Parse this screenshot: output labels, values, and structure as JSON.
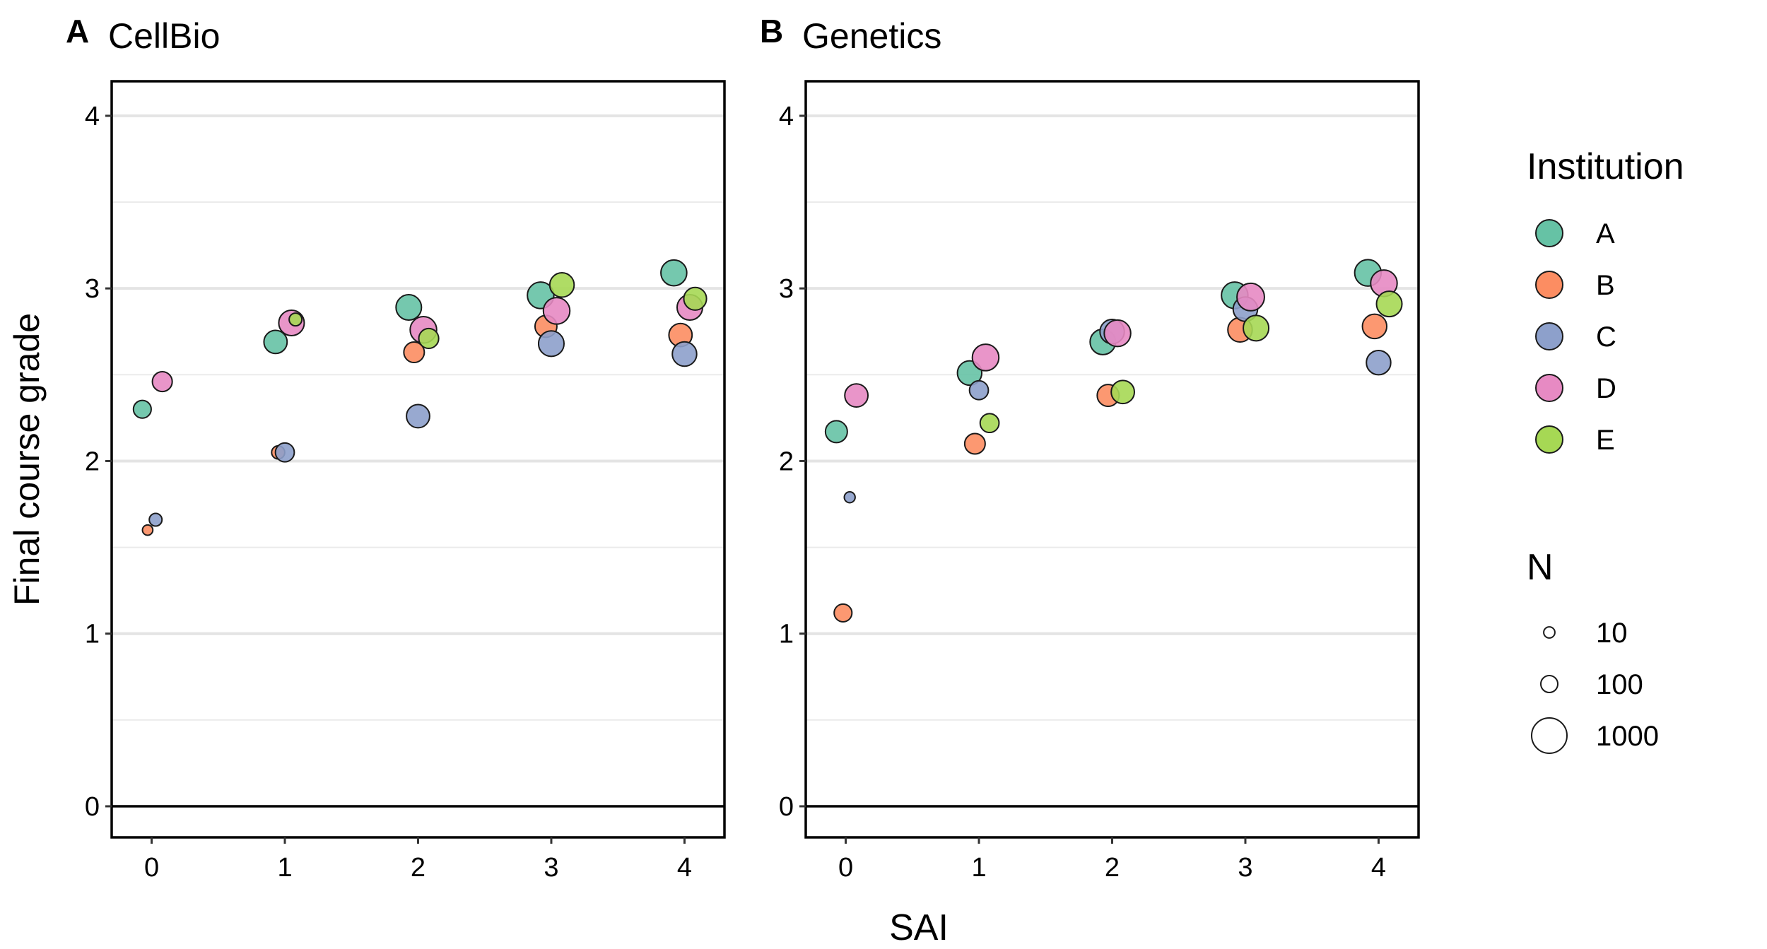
{
  "colors": {
    "A": "#66C2A5",
    "B": "#FC8D62",
    "C": "#8DA0CB",
    "D": "#E78AC3",
    "E": "#A6D854"
  },
  "legend": {
    "institution_title": "Institution",
    "institutions": [
      "A",
      "B",
      "C",
      "D",
      "E"
    ],
    "size_title": "N",
    "sizes": [
      {
        "label": "10",
        "n": 10
      },
      {
        "label": "100",
        "n": 100
      },
      {
        "label": "1000",
        "n": 1000
      }
    ]
  },
  "x_label": "SAI",
  "y_label": "Final course grade",
  "chart_data": [
    {
      "type": "scatter",
      "panel_letter": "A",
      "title": "CellBio",
      "x_ticks": [
        "0",
        "1",
        "2",
        "3",
        "4"
      ],
      "y_ticks": [
        "0",
        "1",
        "2",
        "3",
        "4"
      ],
      "xlim": [
        -0.3,
        4.3
      ],
      "ylim": [
        -0.18,
        4.2
      ],
      "points": [
        {
          "institution": "A",
          "x": -0.07,
          "y": 2.3,
          "n": 120
        },
        {
          "institution": "B",
          "x": -0.03,
          "y": 1.6,
          "n": 5
        },
        {
          "institution": "C",
          "x": 0.03,
          "y": 1.66,
          "n": 25
        },
        {
          "institution": "D",
          "x": 0.08,
          "y": 2.46,
          "n": 180
        },
        {
          "institution": "A",
          "x": 0.93,
          "y": 2.69,
          "n": 300
        },
        {
          "institution": "B",
          "x": 0.95,
          "y": 2.05,
          "n": 30
        },
        {
          "institution": "C",
          "x": 1.0,
          "y": 2.05,
          "n": 150
        },
        {
          "institution": "D",
          "x": 1.05,
          "y": 2.8,
          "n": 400
        },
        {
          "institution": "E",
          "x": 1.08,
          "y": 2.82,
          "n": 25
        },
        {
          "institution": "A",
          "x": 1.93,
          "y": 2.89,
          "n": 400
        },
        {
          "institution": "B",
          "x": 1.97,
          "y": 2.63,
          "n": 200
        },
        {
          "institution": "C",
          "x": 2.0,
          "y": 2.26,
          "n": 300
        },
        {
          "institution": "D",
          "x": 2.04,
          "y": 2.76,
          "n": 450
        },
        {
          "institution": "E",
          "x": 2.08,
          "y": 2.71,
          "n": 180
        },
        {
          "institution": "A",
          "x": 2.92,
          "y": 2.96,
          "n": 450
        },
        {
          "institution": "B",
          "x": 2.96,
          "y": 2.78,
          "n": 250
        },
        {
          "institution": "C",
          "x": 3.0,
          "y": 2.68,
          "n": 400
        },
        {
          "institution": "D",
          "x": 3.04,
          "y": 2.87,
          "n": 450
        },
        {
          "institution": "E",
          "x": 3.08,
          "y": 3.02,
          "n": 350
        },
        {
          "institution": "A",
          "x": 3.92,
          "y": 3.09,
          "n": 420
        },
        {
          "institution": "B",
          "x": 3.97,
          "y": 2.73,
          "n": 300
        },
        {
          "institution": "C",
          "x": 4.0,
          "y": 2.62,
          "n": 350
        },
        {
          "institution": "D",
          "x": 4.04,
          "y": 2.89,
          "n": 400
        },
        {
          "institution": "E",
          "x": 4.08,
          "y": 2.94,
          "n": 280
        }
      ]
    },
    {
      "type": "scatter",
      "panel_letter": "B",
      "title": "Genetics",
      "x_ticks": [
        "0",
        "1",
        "2",
        "3",
        "4"
      ],
      "y_ticks": [
        "0",
        "1",
        "2",
        "3",
        "4"
      ],
      "xlim": [
        -0.3,
        4.3
      ],
      "ylim": [
        -0.18,
        4.2
      ],
      "points": [
        {
          "institution": "A",
          "x": -0.07,
          "y": 2.17,
          "n": 250
        },
        {
          "institution": "B",
          "x": -0.02,
          "y": 1.12,
          "n": 120
        },
        {
          "institution": "C",
          "x": 0.03,
          "y": 1.79,
          "n": 8
        },
        {
          "institution": "D",
          "x": 0.08,
          "y": 2.38,
          "n": 300
        },
        {
          "institution": "A",
          "x": 0.93,
          "y": 2.51,
          "n": 350
        },
        {
          "institution": "B",
          "x": 0.97,
          "y": 2.1,
          "n": 200
        },
        {
          "institution": "C",
          "x": 1.0,
          "y": 2.41,
          "n": 150
        },
        {
          "institution": "D",
          "x": 1.05,
          "y": 2.6,
          "n": 450
        },
        {
          "institution": "E",
          "x": 1.08,
          "y": 2.22,
          "n": 150
        },
        {
          "institution": "A",
          "x": 1.93,
          "y": 2.69,
          "n": 400
        },
        {
          "institution": "B",
          "x": 1.97,
          "y": 2.38,
          "n": 250
        },
        {
          "institution": "C",
          "x": 2.0,
          "y": 2.75,
          "n": 350
        },
        {
          "institution": "D",
          "x": 2.04,
          "y": 2.74,
          "n": 450
        },
        {
          "institution": "E",
          "x": 2.08,
          "y": 2.4,
          "n": 300
        },
        {
          "institution": "A",
          "x": 2.92,
          "y": 2.96,
          "n": 450
        },
        {
          "institution": "B",
          "x": 2.96,
          "y": 2.76,
          "n": 350
        },
        {
          "institution": "C",
          "x": 3.0,
          "y": 2.88,
          "n": 350
        },
        {
          "institution": "D",
          "x": 3.04,
          "y": 2.95,
          "n": 500
        },
        {
          "institution": "E",
          "x": 3.08,
          "y": 2.77,
          "n": 400
        },
        {
          "institution": "A",
          "x": 3.92,
          "y": 3.09,
          "n": 450
        },
        {
          "institution": "B",
          "x": 3.97,
          "y": 2.78,
          "n": 350
        },
        {
          "institution": "C",
          "x": 4.0,
          "y": 2.57,
          "n": 350
        },
        {
          "institution": "D",
          "x": 4.04,
          "y": 3.03,
          "n": 450
        },
        {
          "institution": "E",
          "x": 4.08,
          "y": 2.91,
          "n": 400
        }
      ]
    }
  ]
}
